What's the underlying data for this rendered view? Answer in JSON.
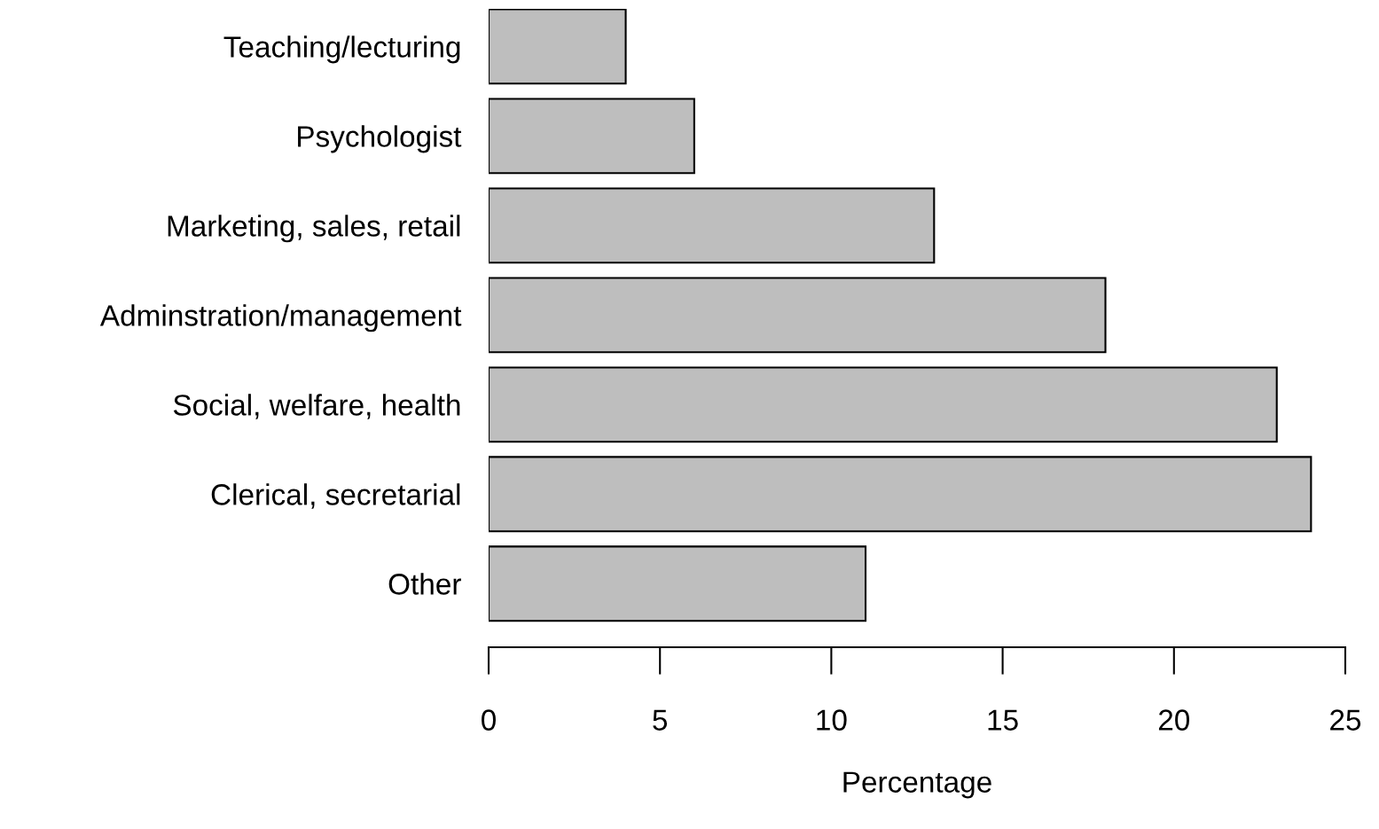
{
  "chart_data": {
    "type": "bar",
    "orientation": "horizontal",
    "xlabel": "Percentage",
    "categories": [
      "Teaching/lecturing",
      "Psychologist",
      "Marketing, sales, retail",
      "Adminstration/management",
      "Social, welfare, health",
      "Clerical, secretarial",
      "Other"
    ],
    "values": [
      4,
      6,
      13,
      18,
      23,
      24,
      11
    ],
    "color": "#bebebe",
    "xlim": [
      0,
      25
    ],
    "xticks": [
      0,
      5,
      10,
      15,
      20,
      25
    ],
    "grid": false
  }
}
